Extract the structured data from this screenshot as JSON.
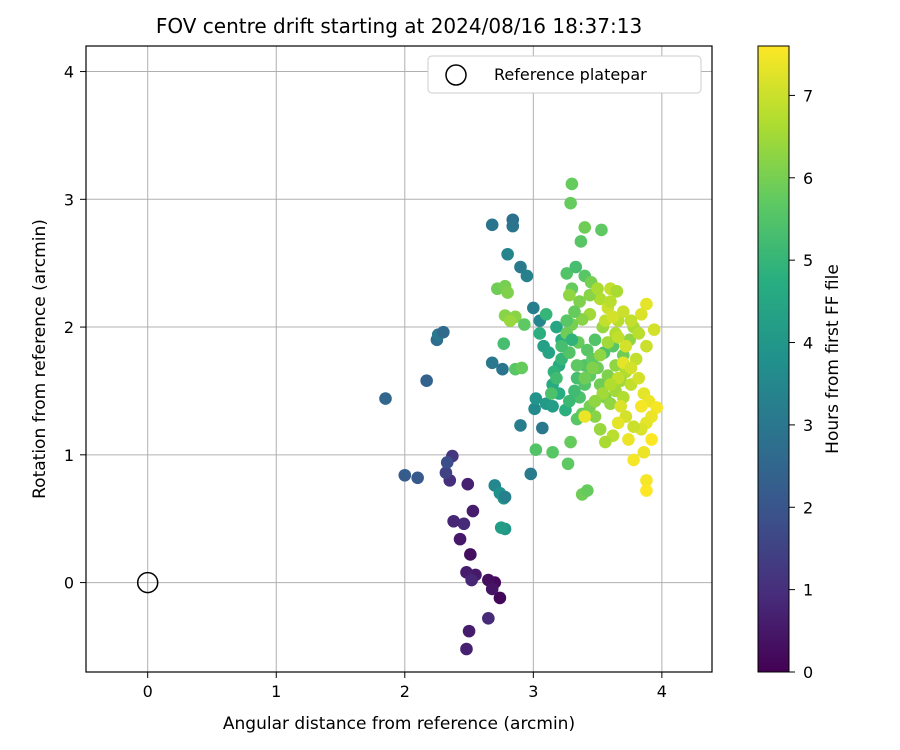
{
  "chart_data": {
    "type": "scatter",
    "title": "FOV centre drift starting at 2024/08/16 18:37:13",
    "xlabel": "Angular distance from reference (arcmin)",
    "ylabel": "Rotation from reference (arcmin)",
    "xlim": [
      -0.48,
      4.39
    ],
    "ylim": [
      -0.7,
      4.2
    ],
    "xticks": [
      0,
      1,
      2,
      3,
      4
    ],
    "yticks": [
      0,
      1,
      2,
      3,
      4
    ],
    "grid": true,
    "legend": {
      "placement": "top-right",
      "entries": [
        "Reference platepar"
      ]
    },
    "reference_point": {
      "x": 0,
      "y": 0,
      "label": "Reference platepar"
    },
    "colorbar": {
      "label": "Hours from first FF file",
      "colormap": "viridis",
      "range": [
        0,
        7.6
      ],
      "ticks": [
        0,
        1,
        2,
        3,
        4,
        5,
        6,
        7
      ]
    },
    "points": [
      [
        2.74,
        -0.12,
        0.1
      ],
      [
        2.5,
        -0.38,
        0.6
      ],
      [
        2.48,
        -0.52,
        0.7
      ],
      [
        2.7,
        0.0,
        0.2
      ],
      [
        2.65,
        0.02,
        0.3
      ],
      [
        2.68,
        -0.05,
        0.4
      ],
      [
        2.55,
        0.06,
        0.5
      ],
      [
        2.48,
        0.08,
        0.6
      ],
      [
        2.52,
        0.02,
        0.8
      ],
      [
        2.65,
        -0.28,
        0.9
      ],
      [
        2.51,
        0.22,
        0.3
      ],
      [
        2.43,
        0.34,
        0.5
      ],
      [
        2.46,
        0.46,
        0.9
      ],
      [
        2.38,
        0.48,
        0.8
      ],
      [
        2.53,
        0.56,
        0.6
      ],
      [
        2.49,
        0.77,
        0.7
      ],
      [
        2.35,
        0.8,
        1.0
      ],
      [
        2.37,
        0.99,
        1.2
      ],
      [
        2.32,
        0.86,
        1.5
      ],
      [
        2.33,
        0.94,
        1.8
      ],
      [
        2.1,
        0.82,
        2.1
      ],
      [
        2.0,
        0.84,
        2.2
      ],
      [
        2.17,
        1.58,
        2.4
      ],
      [
        1.85,
        1.44,
        2.5
      ],
      [
        2.25,
        1.9,
        2.7
      ],
      [
        2.26,
        1.94,
        3.0
      ],
      [
        2.3,
        1.96,
        2.6
      ],
      [
        2.7,
        0.76,
        3.5
      ],
      [
        2.74,
        0.7,
        3.8
      ],
      [
        2.77,
        0.66,
        3.9
      ],
      [
        2.78,
        0.42,
        4.0
      ],
      [
        2.75,
        0.43,
        4.2
      ],
      [
        2.78,
        0.67,
        3.3
      ],
      [
        2.98,
        0.85,
        3.1
      ],
      [
        2.68,
        1.72,
        3.0
      ],
      [
        2.76,
        1.67,
        2.9
      ],
      [
        2.9,
        1.23,
        3.2
      ],
      [
        3.07,
        1.21,
        3.0
      ],
      [
        2.68,
        2.8,
        2.9
      ],
      [
        2.84,
        2.84,
        2.8
      ],
      [
        2.84,
        2.79,
        2.9
      ],
      [
        2.9,
        2.47,
        3.1
      ],
      [
        2.8,
        2.57,
        3.4
      ],
      [
        2.95,
        2.4,
        3.3
      ],
      [
        3.0,
        2.15,
        3.2
      ],
      [
        3.05,
        2.05,
        3.5
      ],
      [
        3.01,
        1.36,
        3.6
      ],
      [
        3.02,
        1.44,
        3.9
      ],
      [
        3.1,
        1.4,
        4.1
      ],
      [
        3.15,
        1.38,
        4.2
      ],
      [
        3.08,
        1.85,
        4.3
      ],
      [
        3.12,
        1.8,
        4.4
      ],
      [
        3.18,
        2.0,
        4.5
      ],
      [
        3.2,
        1.7,
        4.6
      ],
      [
        3.05,
        1.95,
        4.8
      ],
      [
        3.1,
        2.1,
        5.0
      ],
      [
        3.16,
        1.65,
        4.9
      ],
      [
        3.22,
        1.9,
        4.7
      ],
      [
        3.15,
        1.55,
        4.6
      ],
      [
        3.2,
        1.48,
        4.7
      ],
      [
        3.25,
        1.35,
        4.8
      ],
      [
        3.02,
        1.04,
        5.5
      ],
      [
        3.15,
        1.02,
        5.6
      ],
      [
        3.27,
        0.93,
        5.7
      ],
      [
        3.29,
        1.1,
        5.8
      ],
      [
        3.38,
        0.69,
        5.9
      ],
      [
        3.42,
        0.72,
        5.8
      ],
      [
        3.3,
        3.12,
        5.8
      ],
      [
        3.29,
        2.97,
        5.8
      ],
      [
        3.37,
        2.67,
        5.6
      ],
      [
        3.4,
        2.78,
        5.9
      ],
      [
        3.53,
        2.76,
        5.7
      ],
      [
        2.72,
        2.3,
        5.9
      ],
      [
        2.78,
        2.32,
        6.0
      ],
      [
        2.8,
        2.27,
        6.1
      ],
      [
        2.78,
        2.09,
        6.2
      ],
      [
        2.86,
        2.08,
        6.2
      ],
      [
        2.82,
        2.05,
        6.4
      ],
      [
        2.77,
        1.87,
        5.3
      ],
      [
        2.86,
        1.67,
        5.6
      ],
      [
        2.91,
        1.68,
        5.8
      ],
      [
        2.93,
        2.02,
        5.7
      ],
      [
        3.26,
        2.42,
        5.5
      ],
      [
        3.33,
        2.47,
        5.3
      ],
      [
        3.4,
        2.4,
        5.6
      ],
      [
        3.3,
        2.3,
        5.8
      ],
      [
        3.45,
        2.35,
        6.0
      ],
      [
        3.36,
        2.2,
        6.1
      ],
      [
        3.28,
        2.25,
        6.3
      ],
      [
        3.44,
        2.1,
        6.5
      ],
      [
        3.52,
        2.22,
        6.7
      ],
      [
        3.6,
        2.3,
        6.9
      ],
      [
        3.58,
        2.15,
        7.0
      ],
      [
        3.65,
        2.28,
        6.6
      ],
      [
        3.66,
        2.05,
        6.8
      ],
      [
        3.54,
        2.0,
        6.4
      ],
      [
        3.38,
        2.06,
        6.2
      ],
      [
        3.3,
        2.02,
        6.0
      ],
      [
        3.26,
        1.95,
        5.9
      ],
      [
        3.35,
        1.88,
        5.8
      ],
      [
        3.42,
        1.82,
        5.6
      ],
      [
        3.48,
        1.9,
        5.5
      ],
      [
        3.55,
        1.8,
        5.4
      ],
      [
        3.62,
        1.85,
        5.6
      ],
      [
        3.7,
        1.78,
        5.9
      ],
      [
        3.75,
        1.9,
        6.3
      ],
      [
        3.78,
        2.0,
        6.6
      ],
      [
        3.82,
        1.95,
        6.8
      ],
      [
        3.88,
        1.85,
        7.0
      ],
      [
        3.84,
        2.1,
        7.2
      ],
      [
        3.88,
        2.18,
        7.3
      ],
      [
        3.94,
        1.98,
        7.1
      ],
      [
        3.8,
        1.75,
        6.9
      ],
      [
        3.72,
        1.65,
        6.7
      ],
      [
        3.68,
        1.58,
        6.5
      ],
      [
        3.64,
        1.7,
        6.3
      ],
      [
        3.58,
        1.62,
        6.1
      ],
      [
        3.5,
        1.68,
        5.9
      ],
      [
        3.44,
        1.62,
        5.7
      ],
      [
        3.4,
        1.55,
        5.5
      ],
      [
        3.36,
        1.45,
        5.4
      ],
      [
        3.32,
        1.5,
        5.2
      ],
      [
        3.28,
        1.42,
        5.1
      ],
      [
        3.34,
        1.6,
        5.3
      ],
      [
        3.4,
        1.7,
        5.5
      ],
      [
        3.46,
        1.75,
        5.7
      ],
      [
        3.52,
        1.55,
        5.9
      ],
      [
        3.56,
        1.45,
        6.1
      ],
      [
        3.6,
        1.4,
        6.3
      ],
      [
        3.64,
        1.5,
        6.5
      ],
      [
        3.7,
        1.45,
        6.7
      ],
      [
        3.76,
        1.55,
        6.9
      ],
      [
        3.82,
        1.6,
        7.1
      ],
      [
        3.86,
        1.48,
        7.3
      ],
      [
        3.9,
        1.42,
        7.4
      ],
      [
        3.96,
        1.37,
        7.5
      ],
      [
        3.92,
        1.3,
        7.4
      ],
      [
        3.88,
        1.25,
        7.3
      ],
      [
        3.84,
        1.2,
        7.2
      ],
      [
        3.78,
        1.22,
        7.0
      ],
      [
        3.72,
        1.3,
        7.1
      ],
      [
        3.68,
        1.38,
        7.2
      ],
      [
        3.74,
        1.12,
        7.4
      ],
      [
        3.78,
        0.96,
        7.5
      ],
      [
        3.86,
        1.02,
        7.4
      ],
      [
        3.88,
        0.8,
        7.5
      ],
      [
        3.88,
        0.72,
        7.6
      ],
      [
        3.92,
        1.12,
        7.6
      ],
      [
        3.84,
        1.38,
        7.5
      ],
      [
        3.66,
        1.25,
        7.3
      ],
      [
        3.62,
        1.15,
        6.8
      ],
      [
        3.56,
        1.1,
        6.6
      ],
      [
        3.52,
        1.2,
        6.4
      ],
      [
        3.48,
        1.3,
        6.2
      ],
      [
        3.44,
        1.38,
        6.0
      ],
      [
        3.38,
        1.32,
        5.8
      ],
      [
        3.34,
        1.28,
        5.6
      ],
      [
        3.4,
        1.3,
        7.4
      ],
      [
        3.3,
        1.9,
        4.9
      ],
      [
        3.22,
        1.75,
        5.0
      ],
      [
        3.18,
        1.6,
        5.2
      ],
      [
        3.14,
        1.48,
        5.4
      ],
      [
        3.26,
        2.05,
        5.6
      ],
      [
        3.32,
        2.12,
        5.8
      ],
      [
        3.44,
        2.25,
        6.2
      ],
      [
        3.5,
        2.3,
        6.6
      ],
      [
        3.6,
        2.2,
        6.8
      ],
      [
        3.7,
        2.12,
        7.0
      ],
      [
        3.76,
        2.05,
        6.9
      ],
      [
        3.64,
        1.95,
        6.7
      ],
      [
        3.58,
        1.88,
        6.5
      ],
      [
        3.52,
        1.78,
        6.3
      ],
      [
        3.46,
        1.68,
        6.1
      ],
      [
        3.4,
        1.6,
        5.9
      ],
      [
        3.34,
        1.7,
        5.7
      ],
      [
        3.28,
        1.8,
        5.5
      ],
      [
        3.22,
        1.85,
        5.3
      ],
      [
        3.56,
        2.05,
        6.9
      ],
      [
        3.62,
        2.08,
        7.1
      ],
      [
        3.66,
        1.92,
        6.9
      ],
      [
        3.72,
        1.85,
        7.1
      ],
      [
        3.7,
        1.72,
        7.3
      ],
      [
        3.76,
        1.68,
        7.1
      ],
      [
        3.66,
        1.6,
        6.9
      ],
      [
        3.6,
        1.55,
        6.7
      ],
      [
        3.54,
        1.48,
        6.5
      ],
      [
        3.48,
        1.42,
        6.3
      ]
    ]
  }
}
